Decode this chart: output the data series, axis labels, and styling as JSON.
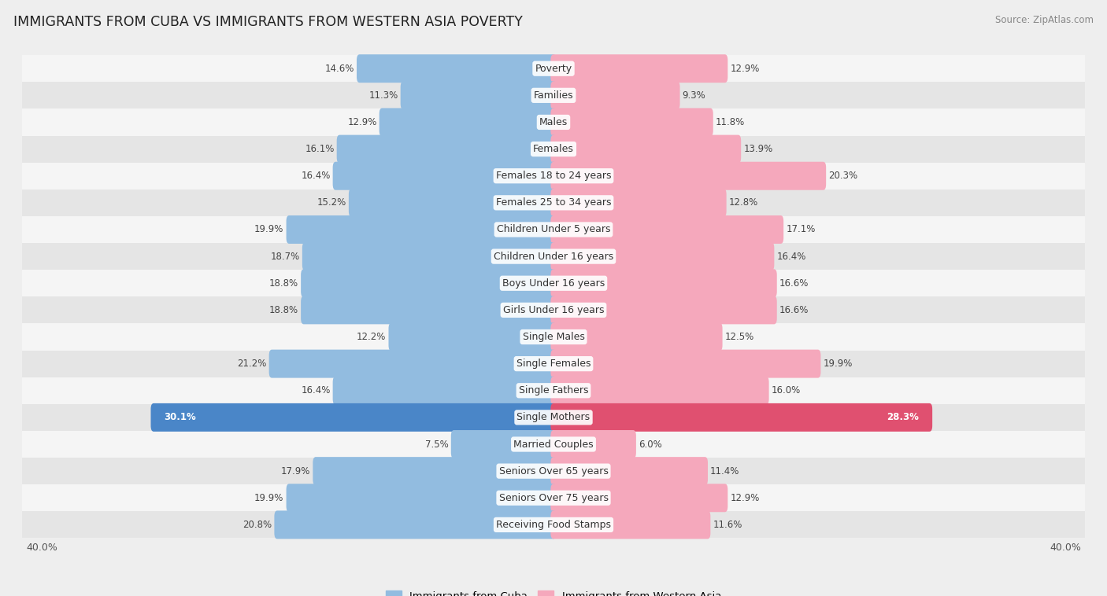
{
  "title": "IMMIGRANTS FROM CUBA VS IMMIGRANTS FROM WESTERN ASIA POVERTY",
  "source": "Source: ZipAtlas.com",
  "categories": [
    "Poverty",
    "Families",
    "Males",
    "Females",
    "Females 18 to 24 years",
    "Females 25 to 34 years",
    "Children Under 5 years",
    "Children Under 16 years",
    "Boys Under 16 years",
    "Girls Under 16 years",
    "Single Males",
    "Single Females",
    "Single Fathers",
    "Single Mothers",
    "Married Couples",
    "Seniors Over 65 years",
    "Seniors Over 75 years",
    "Receiving Food Stamps"
  ],
  "cuba_values": [
    14.6,
    11.3,
    12.9,
    16.1,
    16.4,
    15.2,
    19.9,
    18.7,
    18.8,
    18.8,
    12.2,
    21.2,
    16.4,
    30.1,
    7.5,
    17.9,
    19.9,
    20.8
  ],
  "western_asia_values": [
    12.9,
    9.3,
    11.8,
    13.9,
    20.3,
    12.8,
    17.1,
    16.4,
    16.6,
    16.6,
    12.5,
    19.9,
    16.0,
    28.3,
    6.0,
    11.4,
    12.9,
    11.6
  ],
  "cuba_color": "#92bce0",
  "western_asia_color": "#f5a8bc",
  "single_mothers_cuba_color": "#4a86c8",
  "single_mothers_western_asia_color": "#e05070",
  "bar_height": 0.62,
  "bg_color": "#eeeeee",
  "row_bg_light": "#f5f5f5",
  "row_bg_dark": "#e5e5e5",
  "max_val": 40.0,
  "label_fontsize": 9.0,
  "title_fontsize": 12.5,
  "source_fontsize": 8.5,
  "value_fontsize": 8.5,
  "legend_fontsize": 9.5
}
